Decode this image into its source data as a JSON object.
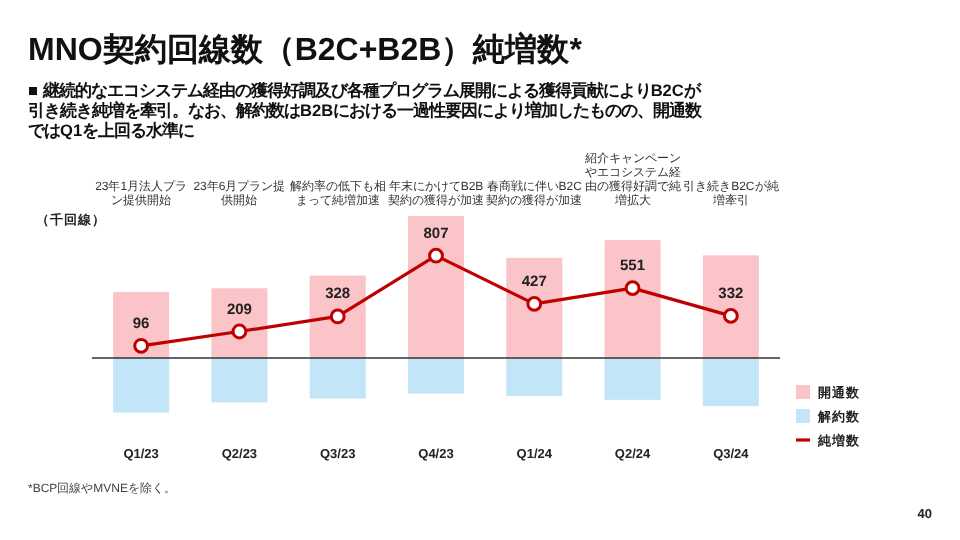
{
  "chart_data": {
    "type": "bar",
    "title": "MNO契約回線数（B2C+B2B）純増数*",
    "subtitle": "■ 継続的なエコシステム経由の獲得好調及び各種プログラム展開による獲得貢献によりB2Cが引き続き純増を牽引。なお、解約数はB2Bにおける一過性要因により増加したものの、開通数ではQ1を上回る水準に",
    "ylabel": "（千回線）",
    "stacked": true,
    "categories": [
      "Q1/23",
      "Q2/23",
      "Q3/23",
      "Q4/23",
      "Q1/24",
      "Q2/24",
      "Q3/24"
    ],
    "series": [
      {
        "name": "開通数",
        "color": "#fbc4c8",
        "values": [
          520,
          550,
          650,
          1120,
          790,
          930,
          810
        ]
      },
      {
        "name": "解約数",
        "color": "#c2e5f8",
        "values": [
          -430,
          -350,
          -320,
          -280,
          -300,
          -330,
          -380
        ]
      },
      {
        "name": "純増数",
        "type": "line",
        "color": "#bf0000",
        "marker": "circle",
        "values": [
          96,
          209,
          328,
          807,
          427,
          551,
          332
        ],
        "value_labels": [
          "96",
          "209",
          "328",
          "807",
          "427",
          "551",
          "332"
        ]
      }
    ],
    "legend": "right",
    "annotations": [
      "23年1月法人プラン提供開始",
      "23年6月プラン提供開始",
      "解約率の低下も相まって純増加速",
      "年末にかけてB2B契約の獲得が加速",
      "春商戦に伴いB2C契約の獲得が加速",
      "紹介キャンペーンやエコシステム経由の獲得好調で純増拡大",
      "引き続きB2Cが純増牽引",
      "*BCP回線やMVNEを除く。",
      "40"
    ]
  }
}
